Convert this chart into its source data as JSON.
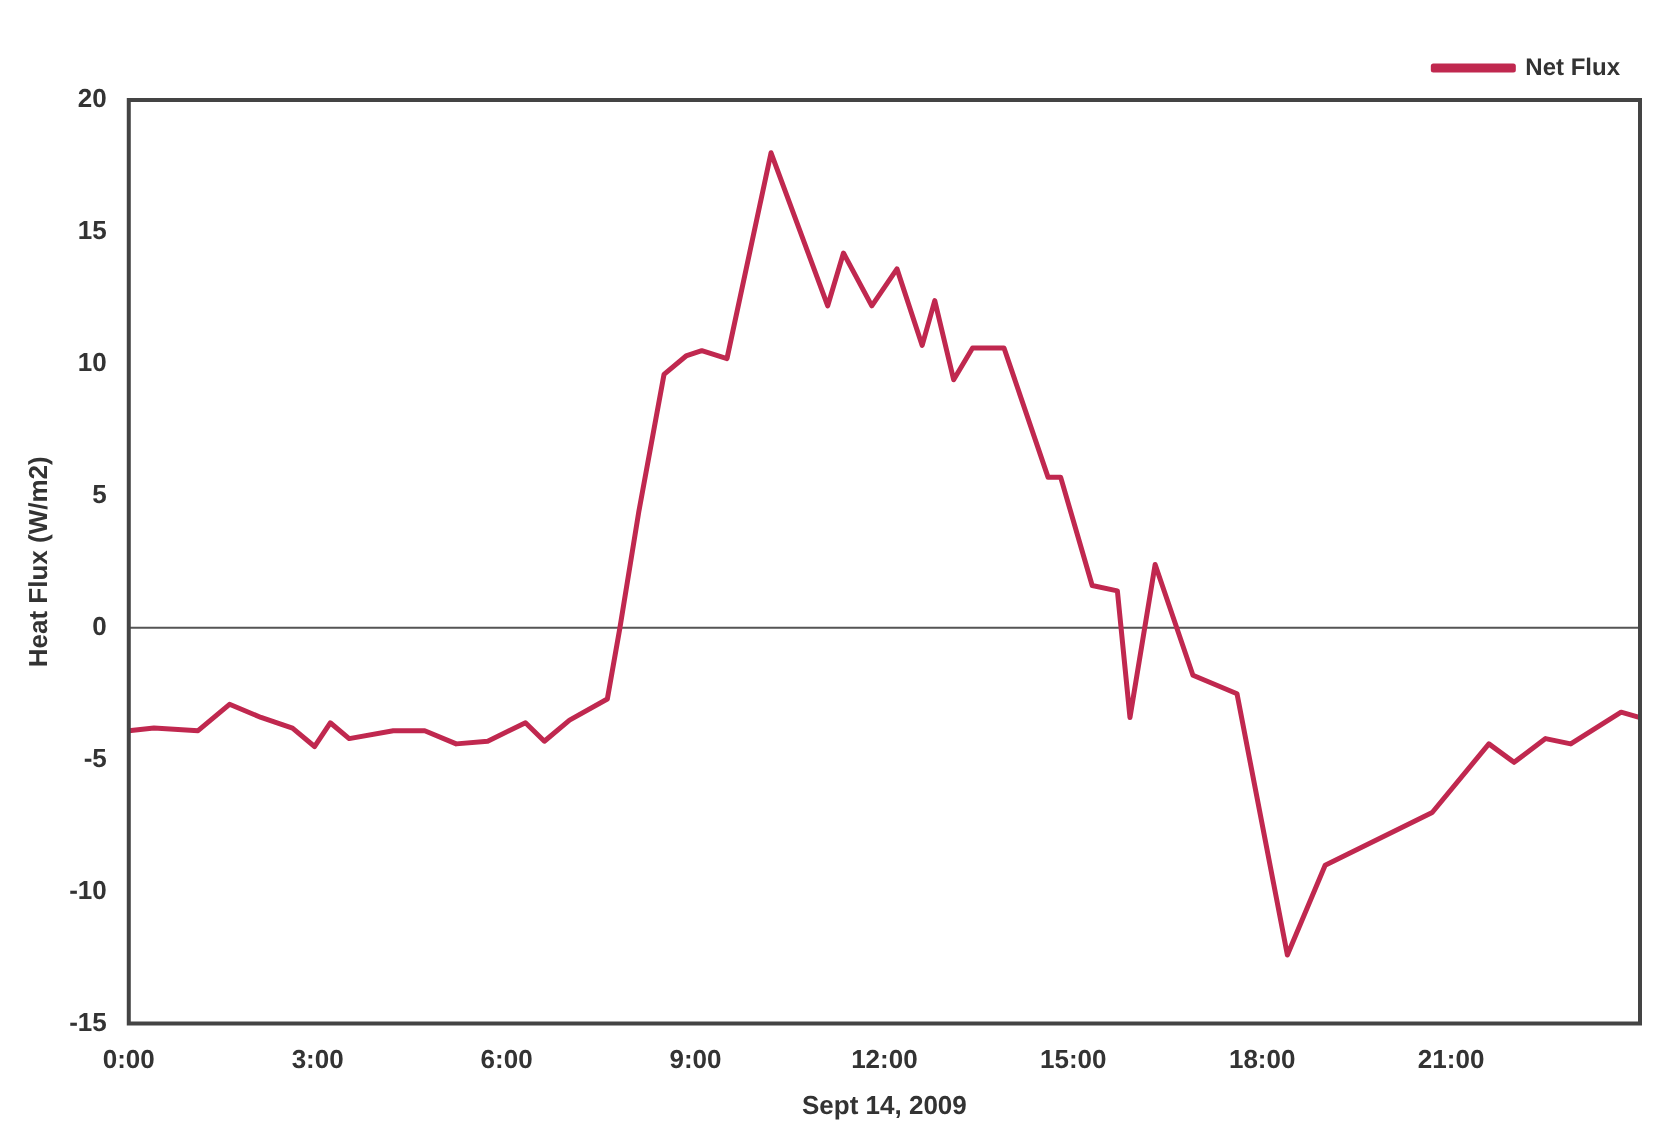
{
  "chart_data": {
    "type": "line",
    "xlabel": "Sept 14, 2009",
    "ylabel": "Heat Flux (W/m2)",
    "series": [
      {
        "name": "Net Flux",
        "color": "#c0284f",
        "x": [
          0,
          0.4,
          1.1,
          1.6,
          2.1,
          2.6,
          2.95,
          3.2,
          3.5,
          4.2,
          4.7,
          5.2,
          5.7,
          6.3,
          6.6,
          7.0,
          7.6,
          7.8,
          8.1,
          8.5,
          8.85,
          9.1,
          9.5,
          10.2,
          11.1,
          11.35,
          11.8,
          12.2,
          12.6,
          12.8,
          13.1,
          13.4,
          13.9,
          14.6,
          14.8,
          15.3,
          15.7,
          15.9,
          16.3,
          16.9,
          17.6,
          18.4,
          19.0,
          20.7,
          21.6,
          22.0,
          22.5,
          22.9,
          23.7,
          24
        ],
        "values": [
          -3.9,
          -3.8,
          -3.9,
          -2.9,
          -3.4,
          -3.8,
          -4.5,
          -3.6,
          -4.2,
          -3.9,
          -3.9,
          -4.4,
          -4.3,
          -3.6,
          -4.3,
          -3.5,
          -2.7,
          0,
          4.4,
          9.6,
          10.3,
          10.5,
          10.2,
          18.0,
          12.2,
          14.2,
          12.2,
          13.6,
          10.7,
          12.4,
          9.4,
          10.6,
          10.6,
          5.7,
          5.7,
          1.6,
          1.4,
          -3.4,
          2.4,
          -1.8,
          -2.5,
          -12.4,
          -9.0,
          -7.0,
          -4.4,
          -5.1,
          -4.2,
          -4.4,
          -3.2,
          -3.4
        ]
      }
    ],
    "xlim": [
      0,
      24
    ],
    "xticks": [
      {
        "value": 0,
        "label": "0:00"
      },
      {
        "value": 3,
        "label": "3:00"
      },
      {
        "value": 6,
        "label": "6:00"
      },
      {
        "value": 9,
        "label": "9:00"
      },
      {
        "value": 12,
        "label": "12:00"
      },
      {
        "value": 15,
        "label": "15:00"
      },
      {
        "value": 18,
        "label": "18:00"
      },
      {
        "value": 21,
        "label": "21:00"
      }
    ],
    "ylim": [
      -15,
      20
    ],
    "yticks": [
      -15,
      -10,
      -5,
      0,
      5,
      10,
      15,
      20
    ],
    "ref_lines": [
      {
        "axis": "y",
        "value": 0,
        "color": "#555555"
      }
    ],
    "grid": false,
    "legend": "top right",
    "marker": "none",
    "line_style": "solid"
  }
}
